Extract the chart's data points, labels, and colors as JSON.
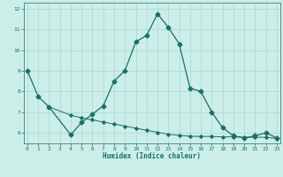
{
  "xlabel": "Humidex (Indice chaleur)",
  "bg_color": "#cceee8",
  "grid_color": "#aad8d2",
  "line_color": "#1a6e6a",
  "line1_x": [
    0,
    1,
    2,
    4,
    5,
    6,
    7,
    8,
    9,
    10,
    11,
    12,
    13,
    14,
    15,
    16,
    17,
    18,
    19,
    20,
    21,
    22,
    23
  ],
  "line1_y": [
    9.0,
    7.75,
    7.25,
    5.9,
    6.5,
    6.9,
    7.3,
    8.5,
    9.0,
    10.4,
    10.7,
    11.75,
    11.1,
    10.3,
    8.15,
    8.0,
    7.0,
    6.25,
    5.85,
    5.75,
    5.85,
    6.0,
    5.75
  ],
  "line2_x": [
    2,
    4,
    5,
    6,
    7,
    8,
    9,
    10,
    11,
    12,
    13,
    14,
    15,
    16,
    17,
    18,
    19,
    20,
    21,
    22,
    23
  ],
  "line2_y": [
    7.25,
    6.85,
    6.72,
    6.62,
    6.52,
    6.42,
    6.32,
    6.22,
    6.12,
    6.02,
    5.93,
    5.87,
    5.83,
    5.82,
    5.82,
    5.8,
    5.8,
    5.78,
    5.78,
    5.78,
    5.72
  ],
  "xlim": [
    -0.3,
    23.3
  ],
  "ylim": [
    5.5,
    12.3
  ],
  "yticks": [
    6,
    7,
    8,
    9,
    10,
    11,
    12
  ],
  "xticks": [
    0,
    1,
    2,
    3,
    4,
    5,
    6,
    7,
    8,
    9,
    10,
    11,
    12,
    13,
    14,
    15,
    16,
    17,
    18,
    19,
    20,
    21,
    22,
    23
  ]
}
